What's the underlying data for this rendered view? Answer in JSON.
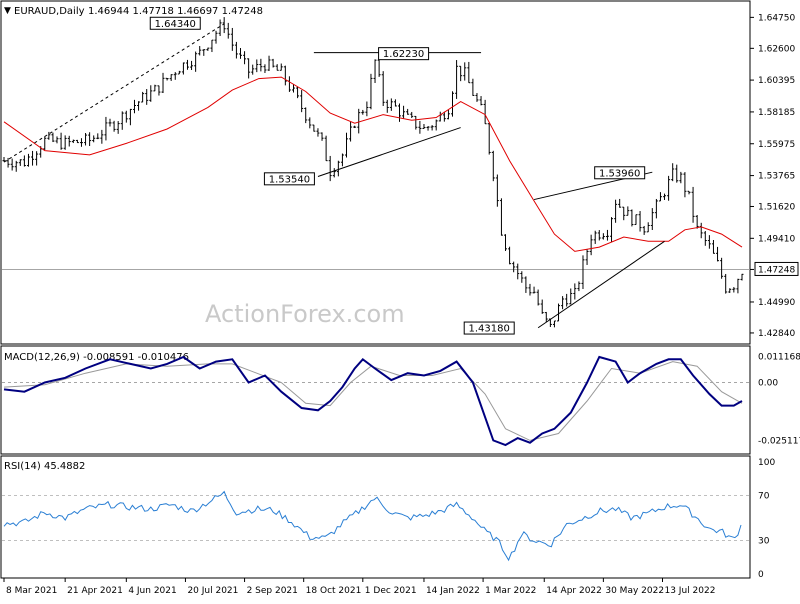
{
  "header": {
    "symbol_line": "EURAUD,Daily",
    "ohlc": "1.46944 1.47718 1.46697 1.47248"
  },
  "watermark": "ActionForex.com",
  "chart_data": [
    {
      "type": "candlestick",
      "pane": "price",
      "ylim": [
        1.4235,
        1.654
      ],
      "y_ticks": [
        "1.64750",
        "1.62600",
        "1.60395",
        "1.58185",
        "1.55975",
        "1.53765",
        "1.51620",
        "1.49410",
        "1.47248",
        "1.44990",
        "1.42840"
      ],
      "current_price": "1.47248",
      "x_ticks": [
        "8 Mar 2021",
        "21 Apr 2021",
        "4 Jun 2021",
        "20 Jul 2021",
        "2 Sep 2021",
        "18 Oct 2021",
        "1 Dec 2021",
        "14 Jan 2022",
        "1 Mar 2022",
        "14 Apr 2022",
        "30 May 2022",
        "13 Jul 2022"
      ],
      "price_path": [
        [
          0,
          1.548
        ],
        [
          10,
          1.547
        ],
        [
          20,
          1.562
        ],
        [
          30,
          1.56
        ],
        [
          42,
          1.562
        ],
        [
          55,
          1.575
        ],
        [
          65,
          1.588
        ],
        [
          75,
          1.598
        ],
        [
          85,
          1.612
        ],
        [
          95,
          1.621
        ],
        [
          104,
          1.637
        ],
        [
          108,
          1.643
        ],
        [
          113,
          1.625
        ],
        [
          120,
          1.61
        ],
        [
          128,
          1.615
        ],
        [
          136,
          1.609
        ],
        [
          144,
          1.59
        ],
        [
          150,
          1.575
        ],
        [
          156,
          1.56
        ],
        [
          160,
          1.541
        ],
        [
          166,
          1.552
        ],
        [
          172,
          1.575
        ],
        [
          178,
          1.588
        ],
        [
          182,
          1.617
        ],
        [
          186,
          1.59
        ],
        [
          192,
          1.585
        ],
        [
          198,
          1.577
        ],
        [
          206,
          1.57
        ],
        [
          212,
          1.575
        ],
        [
          218,
          1.585
        ],
        [
          222,
          1.612
        ],
        [
          226,
          1.608
        ],
        [
          230,
          1.595
        ],
        [
          235,
          1.58
        ],
        [
          240,
          1.54
        ],
        [
          244,
          1.5
        ],
        [
          248,
          1.48
        ],
        [
          252,
          1.47
        ],
        [
          256,
          1.46
        ],
        [
          260,
          1.457
        ],
        [
          264,
          1.44
        ],
        [
          268,
          1.432
        ],
        [
          274,
          1.452
        ],
        [
          280,
          1.455
        ],
        [
          288,
          1.496
        ],
        [
          296,
          1.5
        ],
        [
          300,
          1.52
        ],
        [
          306,
          1.51
        ],
        [
          314,
          1.502
        ],
        [
          320,
          1.516
        ],
        [
          328,
          1.538
        ],
        [
          332,
          1.536
        ],
        [
          336,
          1.522
        ],
        [
          340,
          1.5
        ],
        [
          346,
          1.488
        ],
        [
          350,
          1.476
        ],
        [
          354,
          1.46
        ],
        [
          358,
          1.462
        ],
        [
          362,
          1.472
        ]
      ],
      "ma20_path": [
        [
          0,
          1.575
        ],
        [
          20,
          1.555
        ],
        [
          42,
          1.552
        ],
        [
          60,
          1.56
        ],
        [
          80,
          1.57
        ],
        [
          100,
          1.585
        ],
        [
          112,
          1.597
        ],
        [
          125,
          1.605
        ],
        [
          136,
          1.606
        ],
        [
          148,
          1.596
        ],
        [
          160,
          1.581
        ],
        [
          172,
          1.574
        ],
        [
          186,
          1.58
        ],
        [
          200,
          1.576
        ],
        [
          212,
          1.578
        ],
        [
          224,
          1.589
        ],
        [
          236,
          1.58
        ],
        [
          248,
          1.548
        ],
        [
          260,
          1.52
        ],
        [
          270,
          1.497
        ],
        [
          280,
          1.485
        ],
        [
          292,
          1.488
        ],
        [
          304,
          1.495
        ],
        [
          316,
          1.492
        ],
        [
          326,
          1.492
        ],
        [
          334,
          1.5
        ],
        [
          342,
          1.502
        ],
        [
          352,
          1.497
        ],
        [
          362,
          1.488
        ]
      ],
      "trendlines": [
        {
          "from": [
            0,
            1.547
          ],
          "to": [
            108,
            1.643
          ],
          "style": "dashed"
        },
        {
          "from": [
            152,
            1.623
          ],
          "to": [
            234,
            1.623
          ],
          "style": "solid"
        },
        {
          "from": [
            154,
            1.537
          ],
          "to": [
            224,
            1.571
          ],
          "style": "solid"
        },
        {
          "from": [
            262,
            1.432
          ],
          "to": [
            324,
            1.492
          ],
          "style": "solid"
        },
        {
          "from": [
            260,
            1.521
          ],
          "to": [
            318,
            1.54
          ],
          "style": "solid"
        }
      ],
      "annotations": [
        {
          "label": "1.64340",
          "at": [
            84,
            1.6434
          ]
        },
        {
          "label": "1.62230",
          "at": [
            196,
            1.6223
          ]
        },
        {
          "label": "1.53540",
          "at": [
            140,
            1.5354
          ]
        },
        {
          "label": "1.43180",
          "at": [
            238,
            1.4318
          ]
        },
        {
          "label": "1.53960",
          "at": [
            302,
            1.5396
          ]
        }
      ]
    },
    {
      "type": "line",
      "pane": "MACD",
      "title": "MACD(12,26,9) -0.008591 -0.010476",
      "ylim": [
        -0.03,
        0.014
      ],
      "y_ticks": [
        "0.011168",
        "0.00",
        "-0.025117"
      ],
      "macd_path": [
        [
          0,
          -0.003
        ],
        [
          10,
          -0.004
        ],
        [
          20,
          0.0
        ],
        [
          30,
          0.002
        ],
        [
          40,
          0.006
        ],
        [
          52,
          0.01
        ],
        [
          62,
          0.008
        ],
        [
          72,
          0.006
        ],
        [
          80,
          0.008
        ],
        [
          88,
          0.011
        ],
        [
          96,
          0.006
        ],
        [
          104,
          0.009
        ],
        [
          112,
          0.01
        ],
        [
          120,
          0.0
        ],
        [
          128,
          0.003
        ],
        [
          136,
          -0.004
        ],
        [
          146,
          -0.011
        ],
        [
          154,
          -0.012
        ],
        [
          160,
          -0.008
        ],
        [
          166,
          -0.002
        ],
        [
          172,
          0.006
        ],
        [
          176,
          0.01
        ],
        [
          182,
          0.006
        ],
        [
          190,
          0.001
        ],
        [
          198,
          0.004
        ],
        [
          206,
          0.003
        ],
        [
          214,
          0.005
        ],
        [
          222,
          0.009
        ],
        [
          230,
          0.0
        ],
        [
          236,
          -0.015
        ],
        [
          240,
          -0.025
        ],
        [
          246,
          -0.027
        ],
        [
          252,
          -0.024
        ],
        [
          258,
          -0.026
        ],
        [
          264,
          -0.022
        ],
        [
          270,
          -0.02
        ],
        [
          278,
          -0.013
        ],
        [
          286,
          0.0
        ],
        [
          292,
          0.011
        ],
        [
          300,
          0.009
        ],
        [
          306,
          0.0
        ],
        [
          312,
          0.004
        ],
        [
          320,
          0.008
        ],
        [
          326,
          0.01
        ],
        [
          332,
          0.01
        ],
        [
          338,
          0.003
        ],
        [
          346,
          -0.005
        ],
        [
          352,
          -0.01
        ],
        [
          358,
          -0.01
        ],
        [
          362,
          -0.008
        ]
      ],
      "signal_path": [
        [
          0,
          -0.002
        ],
        [
          20,
          -0.001
        ],
        [
          40,
          0.004
        ],
        [
          60,
          0.008
        ],
        [
          80,
          0.007
        ],
        [
          100,
          0.008
        ],
        [
          112,
          0.008
        ],
        [
          124,
          0.004
        ],
        [
          136,
          0.0
        ],
        [
          148,
          -0.009
        ],
        [
          160,
          -0.01
        ],
        [
          170,
          0.0
        ],
        [
          180,
          0.007
        ],
        [
          194,
          0.003
        ],
        [
          210,
          0.003
        ],
        [
          224,
          0.006
        ],
        [
          236,
          -0.005
        ],
        [
          246,
          -0.02
        ],
        [
          258,
          -0.025
        ],
        [
          272,
          -0.022
        ],
        [
          286,
          -0.008
        ],
        [
          298,
          0.006
        ],
        [
          312,
          0.004
        ],
        [
          328,
          0.009
        ],
        [
          340,
          0.007
        ],
        [
          352,
          -0.004
        ],
        [
          362,
          -0.009
        ]
      ]
    },
    {
      "type": "line",
      "pane": "RSI",
      "title": "RSI(14) 45.4882",
      "ylim": [
        0,
        100
      ],
      "y_ticks": [
        "100",
        "70",
        "30",
        "0"
      ],
      "levels": [
        70,
        30
      ],
      "rsi_path": [
        [
          0,
          45
        ],
        [
          10,
          46
        ],
        [
          20,
          55
        ],
        [
          30,
          50
        ],
        [
          40,
          58
        ],
        [
          52,
          62
        ],
        [
          60,
          60
        ],
        [
          72,
          58
        ],
        [
          82,
          62
        ],
        [
          92,
          56
        ],
        [
          100,
          64
        ],
        [
          108,
          72
        ],
        [
          114,
          55
        ],
        [
          124,
          58
        ],
        [
          132,
          57
        ],
        [
          140,
          48
        ],
        [
          150,
          33
        ],
        [
          158,
          32
        ],
        [
          166,
          45
        ],
        [
          174,
          56
        ],
        [
          182,
          68
        ],
        [
          190,
          55
        ],
        [
          198,
          50
        ],
        [
          206,
          52
        ],
        [
          214,
          56
        ],
        [
          222,
          62
        ],
        [
          230,
          50
        ],
        [
          236,
          38
        ],
        [
          242,
          30
        ],
        [
          248,
          14
        ],
        [
          254,
          36
        ],
        [
          260,
          30
        ],
        [
          268,
          26
        ],
        [
          276,
          44
        ],
        [
          284,
          50
        ],
        [
          292,
          56
        ],
        [
          300,
          58
        ],
        [
          308,
          50
        ],
        [
          316,
          54
        ],
        [
          324,
          60
        ],
        [
          332,
          62
        ],
        [
          340,
          50
        ],
        [
          346,
          40
        ],
        [
          352,
          38
        ],
        [
          358,
          30
        ],
        [
          362,
          45
        ]
      ]
    }
  ]
}
